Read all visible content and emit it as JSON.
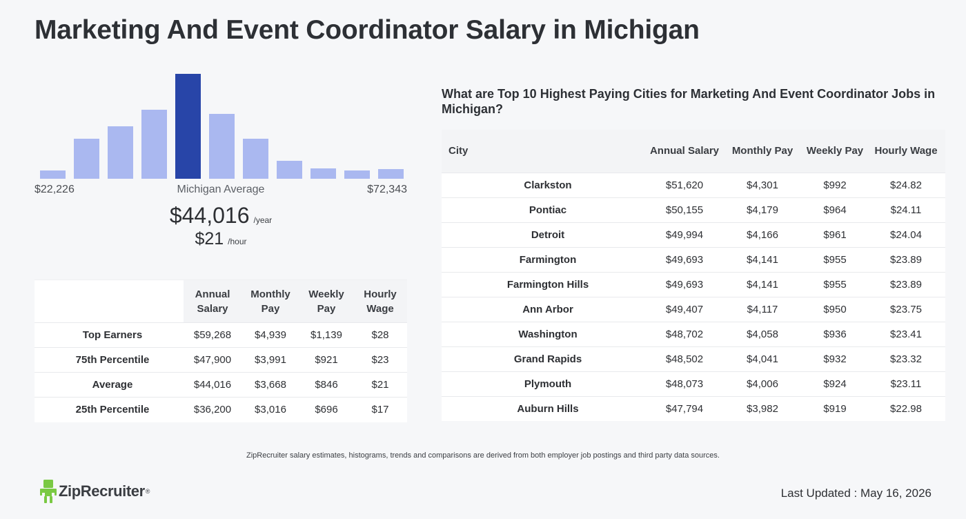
{
  "page": {
    "title": "Marketing And Event Coordinator Salary in Michigan"
  },
  "histogram": {
    "bars": [
      0.08,
      0.38,
      0.5,
      0.66,
      1.0,
      0.62,
      0.38,
      0.17,
      0.1,
      0.08,
      0.09
    ],
    "highlight_index": 4,
    "color": "#aab8f0",
    "highlight_color": "#2845a8",
    "min_label": "$22,226",
    "mid_label": "Michigan Average",
    "max_label": "$72,343"
  },
  "average": {
    "annual": "$44,016",
    "annual_unit": "/year",
    "hourly": "$21",
    "hourly_unit": "/hour"
  },
  "summary_table": {
    "headers": [
      "Annual Salary",
      "Monthly Pay",
      "Weekly Pay",
      "Hourly Wage"
    ],
    "rows": [
      {
        "label": "Top Earners",
        "values": [
          "$59,268",
          "$4,939",
          "$1,139",
          "$28"
        ]
      },
      {
        "label": "75th Percentile",
        "values": [
          "$47,900",
          "$3,991",
          "$921",
          "$23"
        ]
      },
      {
        "label": "Average",
        "values": [
          "$44,016",
          "$3,668",
          "$846",
          "$21"
        ]
      },
      {
        "label": "25th Percentile",
        "values": [
          "$36,200",
          "$3,016",
          "$696",
          "$17"
        ]
      }
    ]
  },
  "cities": {
    "title": "What are Top 10 Highest Paying Cities for Marketing And Event Coordinator Jobs in Michigan?",
    "headers": [
      "City",
      "Annual Salary",
      "Monthly Pay",
      "Weekly Pay",
      "Hourly Wage"
    ],
    "rows": [
      {
        "city": "Clarkston",
        "values": [
          "$51,620",
          "$4,301",
          "$992",
          "$24.82"
        ]
      },
      {
        "city": "Pontiac",
        "values": [
          "$50,155",
          "$4,179",
          "$964",
          "$24.11"
        ]
      },
      {
        "city": "Detroit",
        "values": [
          "$49,994",
          "$4,166",
          "$961",
          "$24.04"
        ]
      },
      {
        "city": "Farmington",
        "values": [
          "$49,693",
          "$4,141",
          "$955",
          "$23.89"
        ]
      },
      {
        "city": "Farmington Hills",
        "values": [
          "$49,693",
          "$4,141",
          "$955",
          "$23.89"
        ]
      },
      {
        "city": "Ann Arbor",
        "values": [
          "$49,407",
          "$4,117",
          "$950",
          "$23.75"
        ]
      },
      {
        "city": "Washington",
        "values": [
          "$48,702",
          "$4,058",
          "$936",
          "$23.41"
        ]
      },
      {
        "city": "Grand Rapids",
        "values": [
          "$48,502",
          "$4,041",
          "$932",
          "$23.32"
        ]
      },
      {
        "city": "Plymouth",
        "values": [
          "$48,073",
          "$4,006",
          "$924",
          "$23.11"
        ]
      },
      {
        "city": "Auburn Hills",
        "values": [
          "$47,794",
          "$3,982",
          "$919",
          "$22.98"
        ]
      }
    ]
  },
  "footer": {
    "note": "ZipRecruiter salary estimates, histograms, trends and comparisons are derived from both employer job postings and third party data sources.",
    "logo_text": "ZipRecruiter",
    "logo_mark": "®",
    "logo_icon": "ziprecruiter-mascot-icon",
    "logo_color": "#7ac943",
    "last_updated": "Last Updated : May 16, 2026"
  }
}
